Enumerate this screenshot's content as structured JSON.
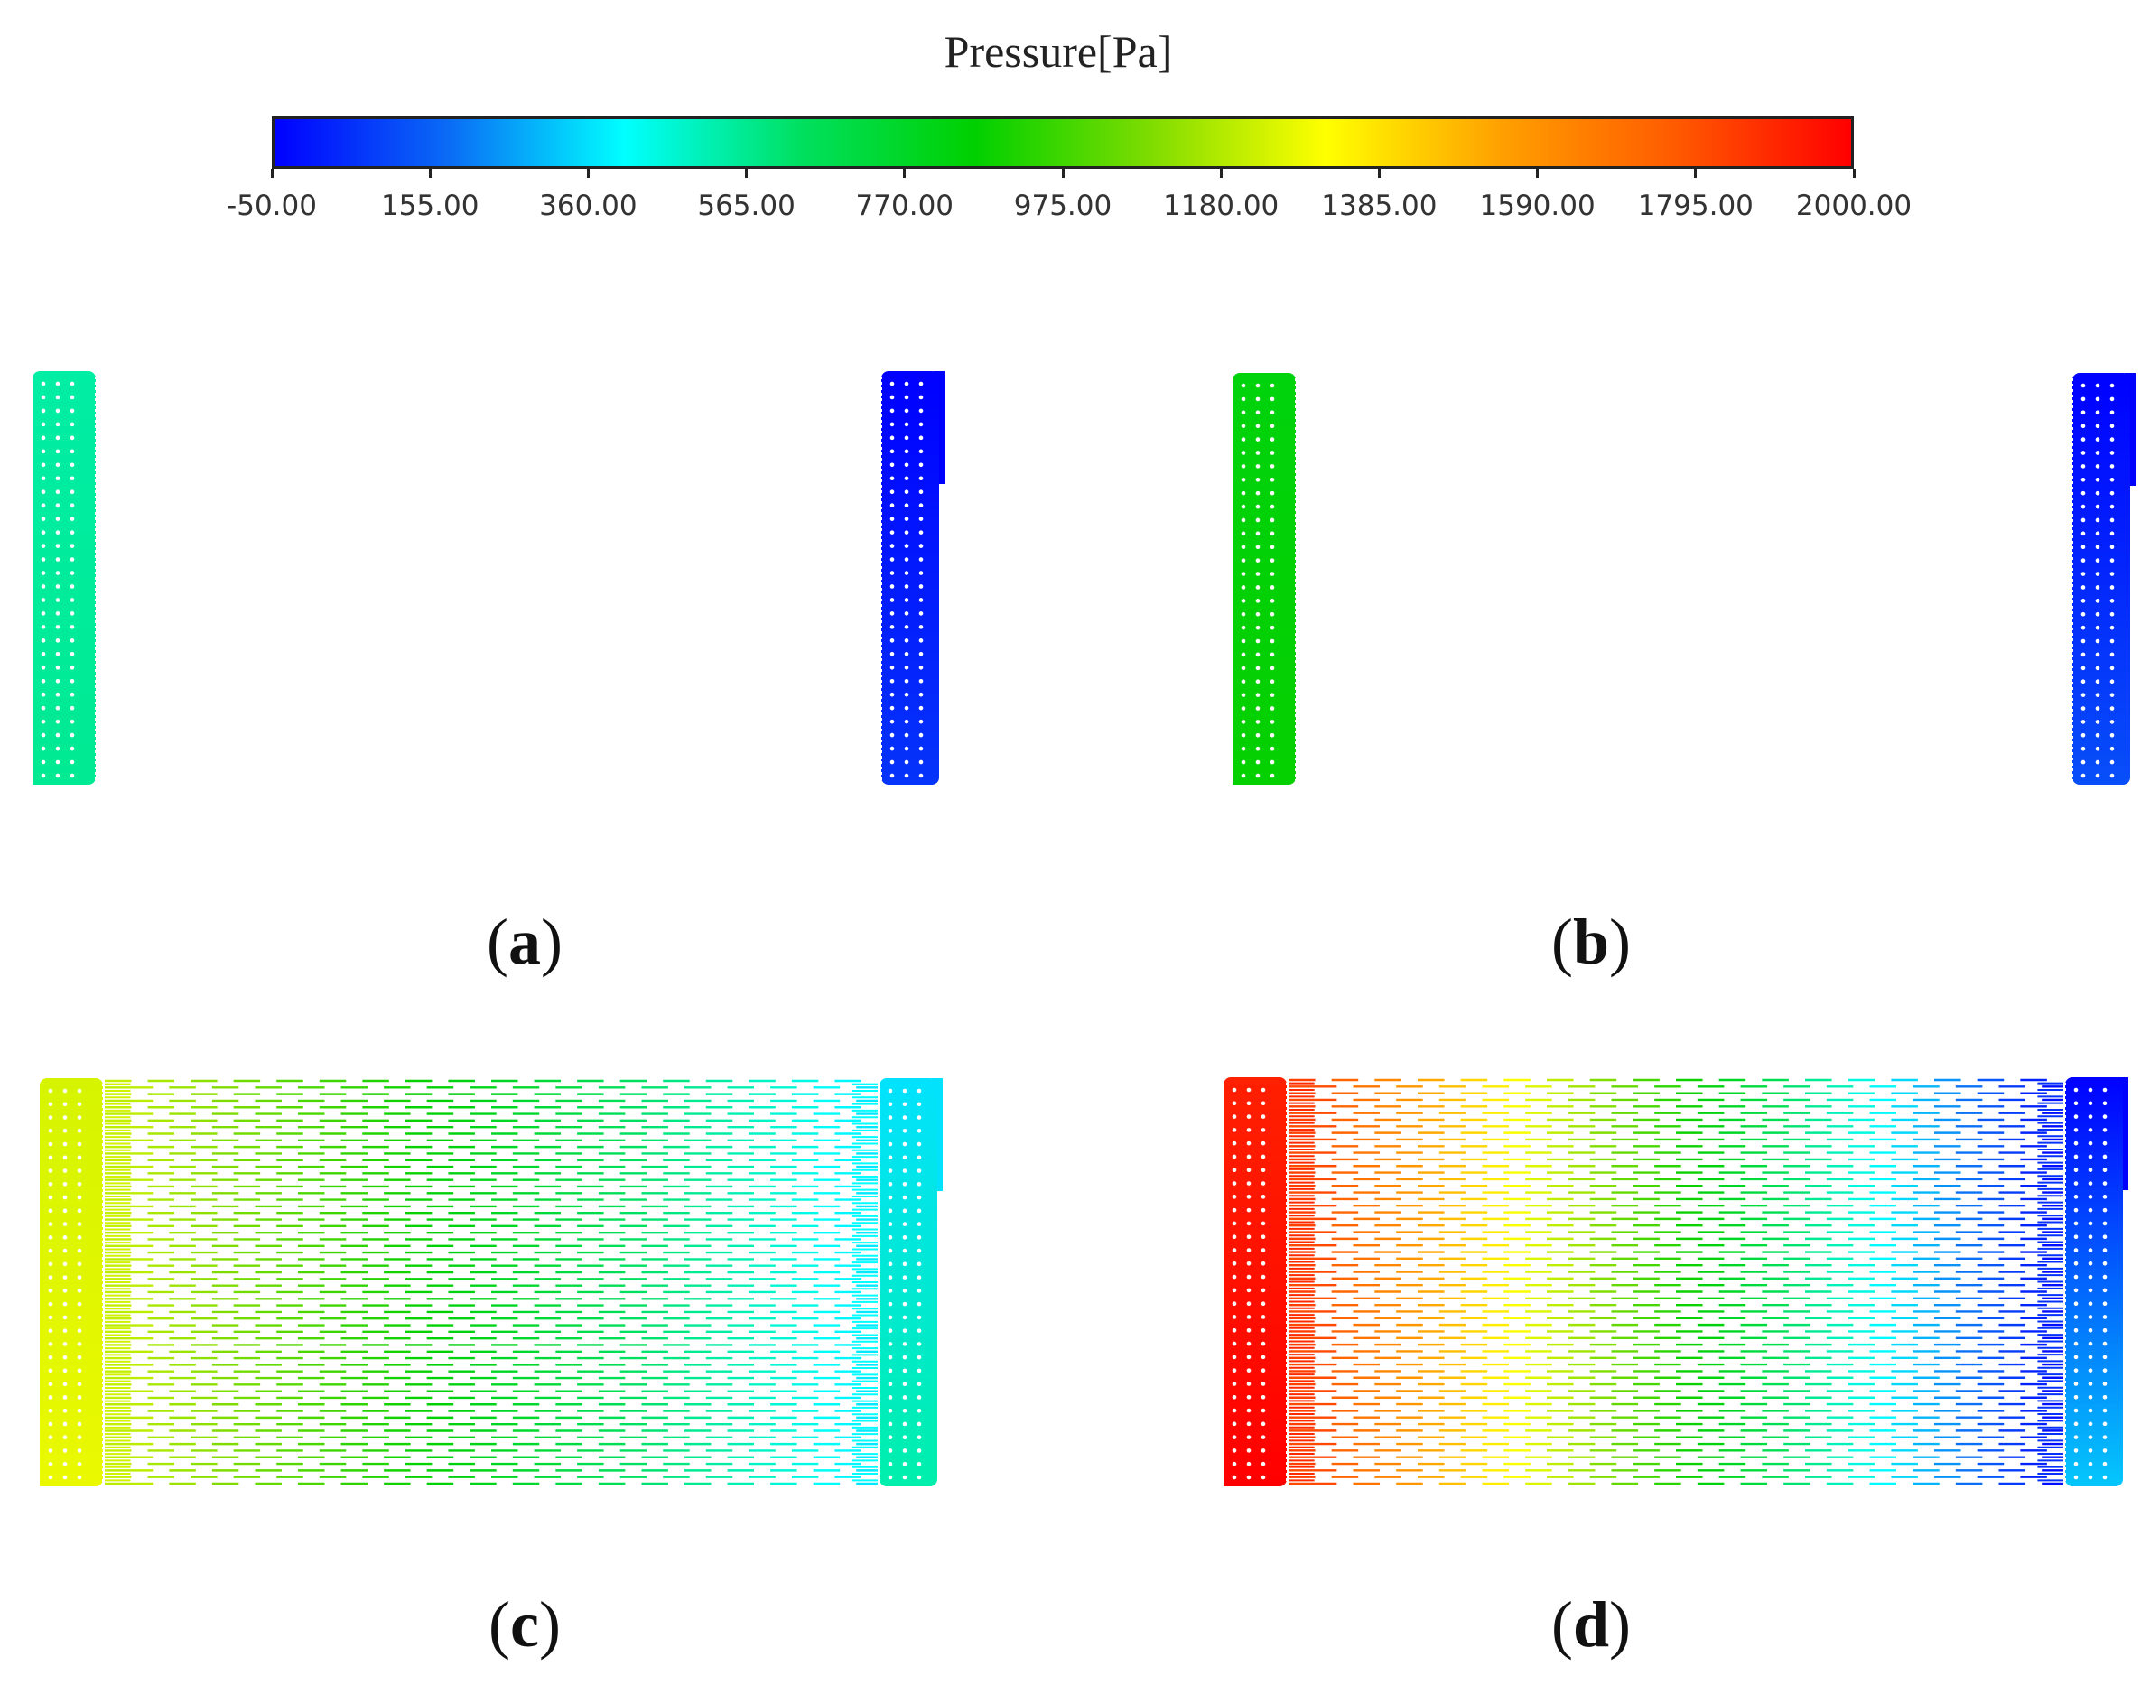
{
  "legend": {
    "title": "Pressure[Pa]",
    "ticks": [
      "-50.00",
      "155.00",
      "360.00",
      "565.00",
      "770.00",
      "975.00",
      "1180.00",
      "1385.00",
      "1590.00",
      "1795.00",
      "2000.00"
    ],
    "range": [
      -50,
      2000
    ],
    "colors": [
      "#0000ff",
      "#0a6cf5",
      "#00ffff",
      "#00e060",
      "#00d000",
      "#7fdc00",
      "#ffff00",
      "#ffa000",
      "#ff5a00",
      "#ff0000"
    ]
  },
  "panels": [
    {
      "id": "a",
      "label": "a",
      "inlet_pressure": 560,
      "outlet_pressure": -50,
      "pattern": "straight"
    },
    {
      "id": "b",
      "label": "b",
      "inlet_pressure": 870,
      "outlet_pressure": -50,
      "pattern": "straight"
    },
    {
      "id": "c",
      "label": "c",
      "inlet_pressure": 1280,
      "outlet_pressure": 360,
      "pattern": "segmented"
    },
    {
      "id": "d",
      "label": "d",
      "inlet_pressure": 2000,
      "outlet_pressure": -50,
      "pattern": "segmented"
    }
  ]
}
